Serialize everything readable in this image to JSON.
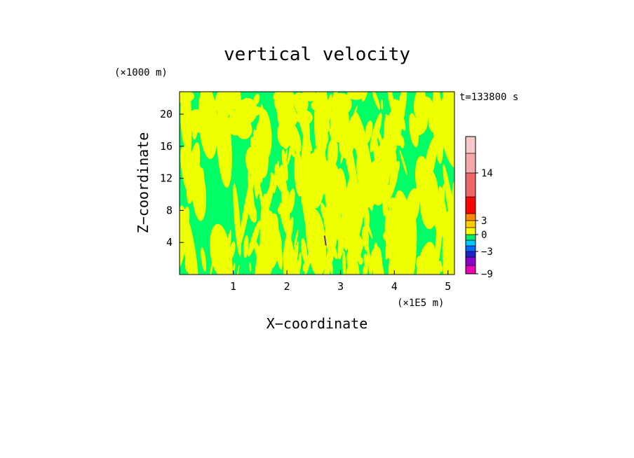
{
  "chart_data": {
    "type": "heatmap",
    "title": "vertical velocity",
    "xlabel": "X−coordinate",
    "ylabel": "Z−coordinate",
    "x_unit": "(×1E5 m)",
    "y_unit": "(×1000 m)",
    "time_label": "t=133800 s",
    "xlim": [
      0,
      5.12
    ],
    "ylim": [
      0,
      22.8
    ],
    "x_ticks": [
      1,
      2,
      3,
      4,
      5
    ],
    "y_ticks": [
      4,
      8,
      12,
      16,
      20
    ],
    "grid": false,
    "colorbar": {
      "levels": [
        {
          "color": "#e800b4"
        },
        {
          "color": "#8a00c8"
        },
        {
          "color": "#2222cc"
        },
        {
          "color": "#0066ff"
        },
        {
          "color": "#00c8ff"
        },
        {
          "color": "#00ee66"
        },
        {
          "color": "#ffff00"
        },
        {
          "color": "#ffcc00"
        },
        {
          "color": "#ff8800"
        },
        {
          "color": "#ff0000"
        },
        {
          "color": "#ee6666"
        },
        {
          "color": "#f4a8a8"
        },
        {
          "color": "#f8c8c8"
        }
      ],
      "tick_labels": [
        {
          "label": "−9",
          "level": 0
        },
        {
          "label": "−3",
          "level": 3
        },
        {
          "label": "0",
          "level": 6
        },
        {
          "label": "3",
          "level": 8
        },
        {
          "label": "14",
          "level": 11
        }
      ]
    },
    "field_colors": {
      "negative": "#00ff66",
      "positive": "#eeff00",
      "dark_streak": "#5533aa"
    }
  }
}
